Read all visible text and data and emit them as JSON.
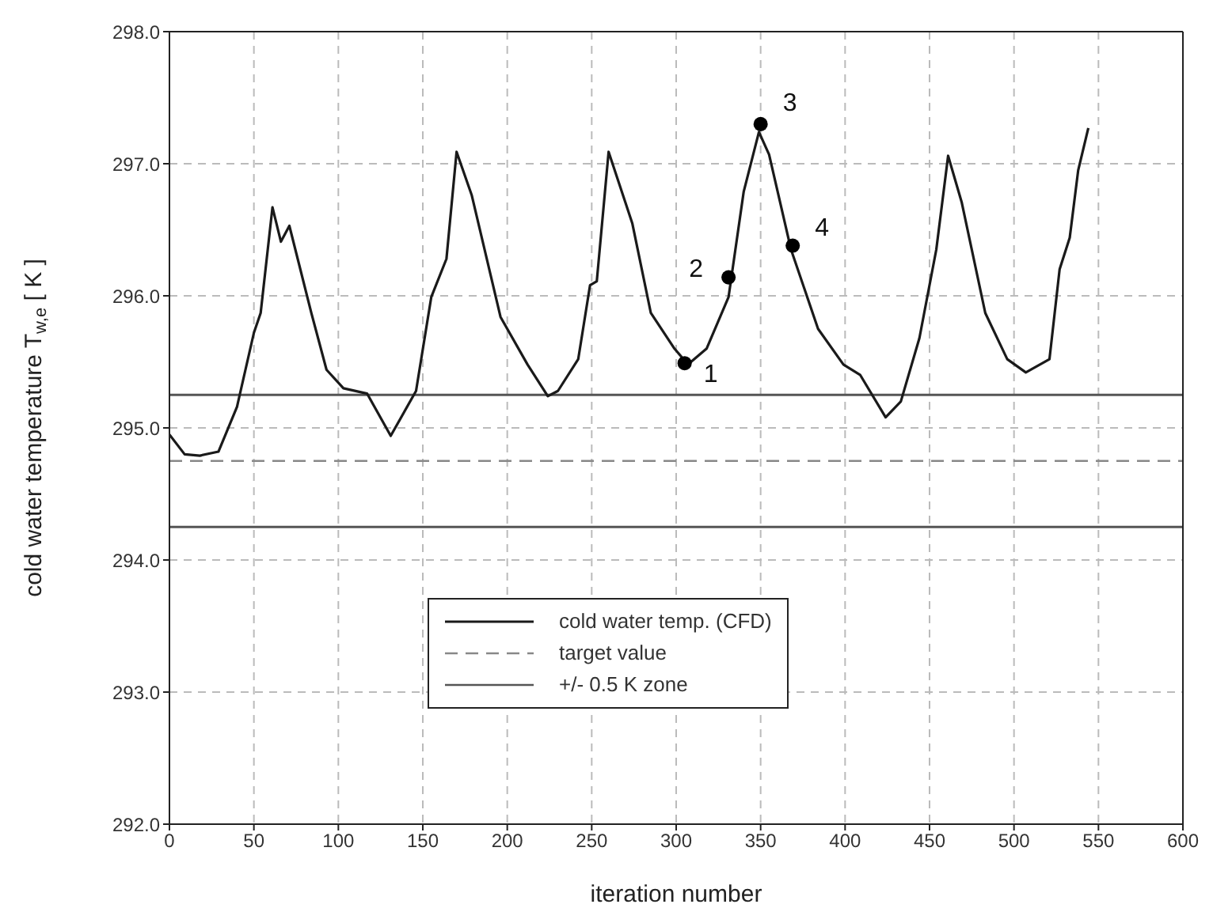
{
  "chart_data": {
    "type": "line",
    "xlabel": "iteration number",
    "ylabel": "cold water temperature T$_{w,e}$ [ K ]",
    "xlim": [
      0,
      600
    ],
    "xticks": [
      0,
      50,
      100,
      150,
      200,
      250,
      300,
      350,
      400,
      450,
      500,
      550,
      600
    ],
    "ylim": [
      292,
      298
    ],
    "yticks": [
      {
        "value": 292,
        "label": "292.0"
      },
      {
        "value": 293,
        "label": "293.0"
      },
      {
        "value": 294,
        "label": "294.0"
      },
      {
        "value": 295,
        "label": "295.0"
      },
      {
        "value": 296,
        "label": "296.0"
      },
      {
        "value": 297,
        "label": "297.0"
      },
      {
        "value": 298,
        "label": "298.0"
      }
    ],
    "grid": true,
    "legend": "bottom",
    "line_style": "solid",
    "series": [
      {
        "name": "cold water temp. (CFD)",
        "color": "#1a1a1a",
        "marker": "none",
        "x": [
          0,
          9,
          18,
          29,
          40,
          50,
          54,
          61,
          66,
          71,
          84,
          93,
          103,
          117,
          131,
          146,
          155,
          164,
          170,
          179,
          196,
          212,
          224,
          230,
          242,
          249,
          253,
          260,
          274,
          285,
          299,
          307,
          318,
          331,
          340,
          349,
          355,
          368,
          384,
          399,
          409,
          424,
          433,
          444,
          454,
          461,
          469,
          483,
          496,
          507,
          521,
          527,
          533,
          538,
          544
        ],
        "values": [
          294.95,
          294.8,
          294.79,
          294.82,
          295.16,
          295.72,
          295.87,
          296.67,
          296.41,
          296.53,
          295.87,
          295.44,
          295.3,
          295.26,
          294.94,
          295.28,
          295.99,
          296.28,
          297.09,
          296.76,
          295.84,
          295.48,
          295.24,
          295.28,
          295.52,
          296.08,
          296.11,
          297.09,
          296.55,
          295.87,
          295.6,
          295.48,
          295.6,
          295.99,
          296.79,
          297.24,
          297.07,
          296.35,
          295.75,
          295.48,
          295.4,
          295.08,
          295.2,
          295.68,
          296.35,
          297.06,
          296.71,
          295.87,
          295.52,
          295.42,
          295.52,
          296.2,
          296.44,
          296.95,
          297.27
        ]
      },
      {
        "type": "scatter",
        "color": "#000000",
        "marker": "circle",
        "x": [
          305,
          331,
          350,
          369
        ],
        "values": [
          295.49,
          296.14,
          297.3,
          296.38
        ]
      }
    ],
    "ref_lines": [
      {
        "axis": "y",
        "value": 294.75,
        "label": "target value",
        "color": "#888888",
        "line_style": "dashed"
      },
      {
        "axis": "y",
        "value": 295.25,
        "label": "+/- 0.5 K zone",
        "color": "#555555",
        "line_style": "solid"
      },
      {
        "axis": "y",
        "value": 294.25,
        "label": null,
        "color": "#555555",
        "line_style": "solid"
      }
    ],
    "annotations": [
      {
        "text": "1",
        "x": 305,
        "y": 295.49
      },
      {
        "text": "2",
        "x": 331,
        "y": 296.14
      },
      {
        "text": "3",
        "x": 350,
        "y": 297.3
      },
      {
        "text": "4",
        "x": 369,
        "y": 296.38
      }
    ]
  }
}
